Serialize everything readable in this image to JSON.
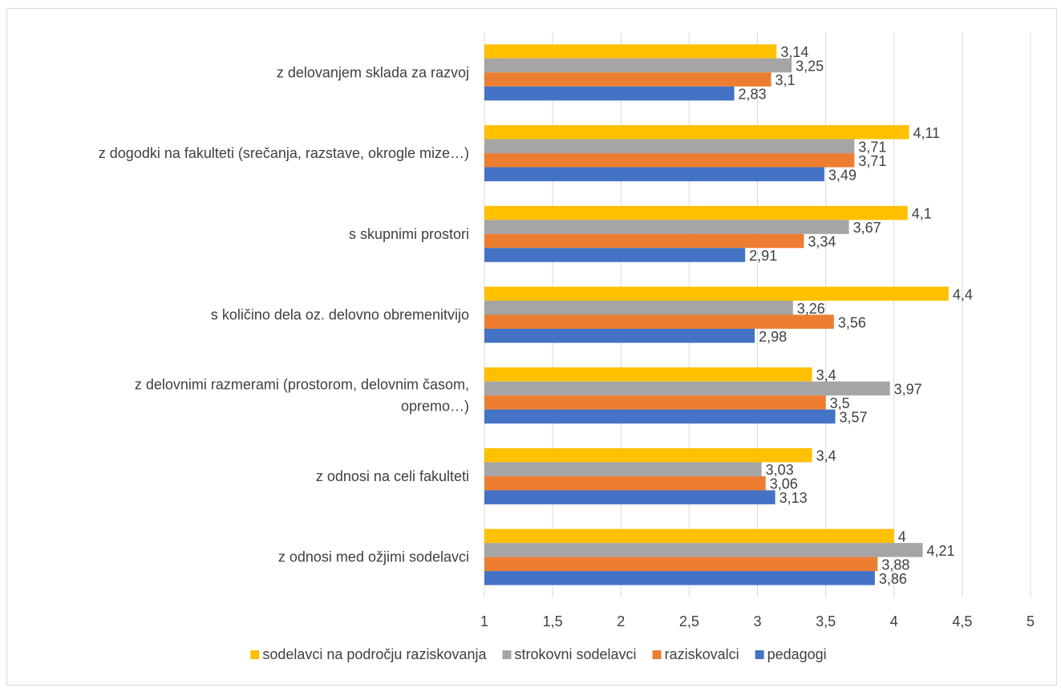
{
  "chart_data": {
    "type": "bar",
    "orientation": "horizontal",
    "categories": [
      [
        "z delovanjem sklada za razvoj"
      ],
      [
        "z dogodki na fakulteti (srečanja, razstave, okrogle mize…)"
      ],
      [
        "s skupnimi prostori"
      ],
      [
        "s količino dela oz. delovno obremenitvijo"
      ],
      [
        "z delovnimi razmerami (prostorom, delovnim časom,",
        "opremo…)"
      ],
      [
        "z odnosi na celi fakulteti"
      ],
      [
        "z odnosi med ožjimi sodelavci"
      ]
    ],
    "series": [
      {
        "name": "sodelavci na področju raziskovanja",
        "color": "#FFC000",
        "values": [
          3.14,
          4.11,
          4.1,
          4.4,
          3.4,
          3.4,
          4
        ],
        "labels": [
          "3,14",
          "4,11",
          "4,1",
          "4,4",
          "3,4",
          "3,4",
          "4"
        ]
      },
      {
        "name": "strokovni sodelavci",
        "color": "#A5A5A5",
        "values": [
          3.25,
          3.71,
          3.67,
          3.26,
          3.97,
          3.03,
          4.21
        ],
        "labels": [
          "3,25",
          "3,71",
          "3,67",
          "3,26",
          "3,97",
          "3,03",
          "4,21"
        ]
      },
      {
        "name": "raziskovalci",
        "color": "#ED7D31",
        "values": [
          3.1,
          3.71,
          3.34,
          3.56,
          3.5,
          3.06,
          3.88
        ],
        "labels": [
          "3,1",
          "3,71",
          "3,34",
          "3,56",
          "3,5",
          "3,06",
          "3,88"
        ]
      },
      {
        "name": "pedagogi",
        "color": "#4472C4",
        "values": [
          2.83,
          3.49,
          2.91,
          2.98,
          3.57,
          3.13,
          3.86
        ],
        "labels": [
          "2,83",
          "3,49",
          "2,91",
          "2,98",
          "3,57",
          "3,13",
          "3,86"
        ]
      }
    ],
    "xlim": [
      1,
      5
    ],
    "xticks": [
      1,
      1.5,
      2,
      2.5,
      3,
      3.5,
      4,
      4.5,
      5
    ],
    "xtick_labels": [
      "1",
      "1,5",
      "2",
      "2,5",
      "3",
      "3,5",
      "4",
      "4,5",
      "5"
    ],
    "grid": true,
    "legend_position": "bottom",
    "title": "",
    "xlabel": "",
    "ylabel": ""
  }
}
